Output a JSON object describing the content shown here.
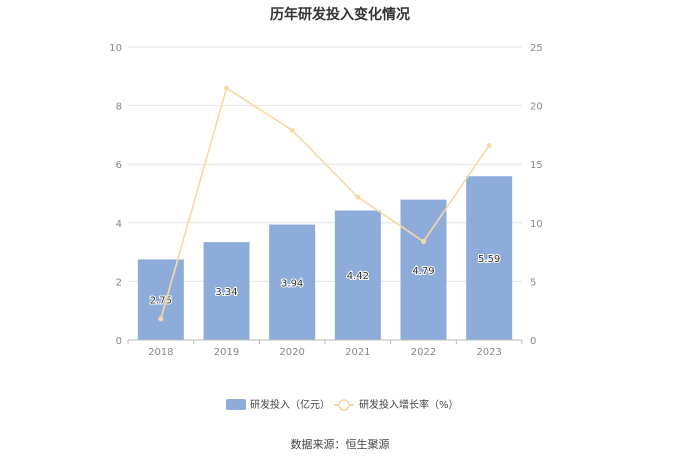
{
  "chart_data": {
    "type": "bar",
    "title": "历年研发投入变化情况",
    "categories": [
      "2018",
      "2019",
      "2020",
      "2021",
      "2022",
      "2023"
    ],
    "series": [
      {
        "name": "研发投入（亿元）",
        "type": "bar",
        "axis": "left",
        "values": [
          2.75,
          3.34,
          3.94,
          4.42,
          4.79,
          5.59
        ],
        "labels": [
          "2.75",
          "3.34",
          "3.94",
          "4.42",
          "4.79",
          "5.59"
        ],
        "color": "#8eacd9"
      },
      {
        "name": "研发投入增长率（%）",
        "type": "line",
        "axis": "right",
        "values": [
          1.8,
          21.5,
          17.9,
          12.2,
          8.4,
          16.6
        ],
        "color": "#f9d9a3"
      }
    ],
    "y_left": {
      "ylim": [
        0,
        10
      ],
      "ticks": [
        "0",
        "2",
        "4",
        "6",
        "8",
        "10"
      ]
    },
    "y_right": {
      "ylim": [
        0,
        25
      ],
      "ticks": [
        "0",
        "5",
        "10",
        "15",
        "20",
        "25"
      ]
    },
    "grid": true,
    "legend_position": "bottom"
  },
  "source": "数据来源：恒生聚源"
}
